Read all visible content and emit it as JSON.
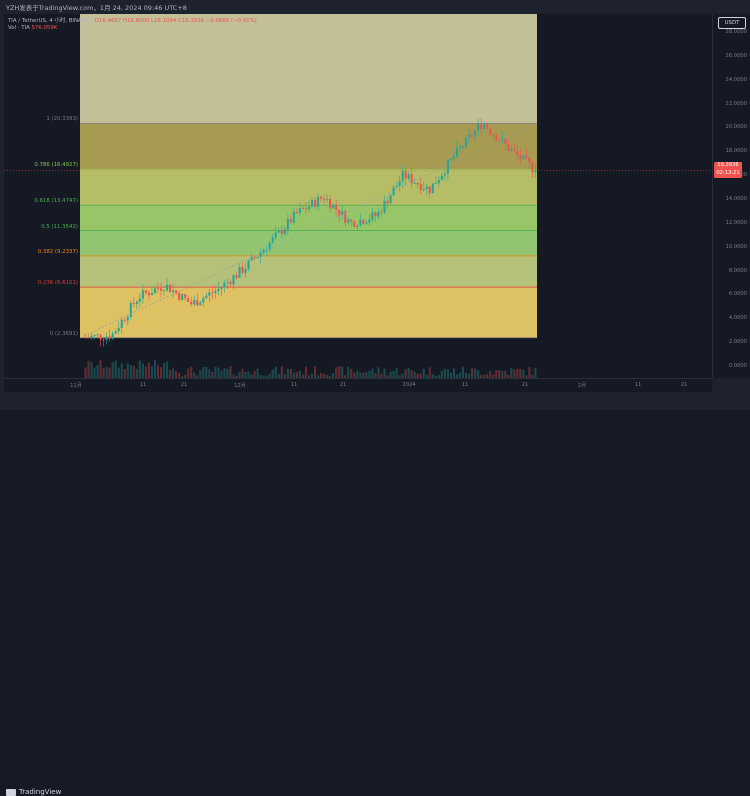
{
  "header": {
    "title": "YZH发表于TradingView.com，1月 24, 2024 09:46 UTC+8"
  },
  "legend": {
    "symbol": "TIA / TetherUS, 4 小时, BINANCE",
    "open": "O16.4667",
    "high": "H16.8000",
    "low": "L16.1094",
    "close": "C16.3936",
    "change": "−0.0680 (−0.41%)",
    "volume_label": "Vol · TIA",
    "volume_value": "576.059K"
  },
  "fib_levels": [
    {
      "label": "1 (20.3393)",
      "value": 20.3393,
      "color": "#787b86",
      "fill": "#b7a957"
    },
    {
      "label": "0.786 (16.4927)",
      "value": 16.4927,
      "color": "#8bc34a",
      "fill": "#c6cf6e"
    },
    {
      "label": "0.618 (13.4747)",
      "value": 13.4747,
      "color": "#4caf50",
      "fill": "#a6d86f"
    },
    {
      "label": "0.5 (11.3542)",
      "value": 11.3542,
      "color": "#4caf50",
      "fill": "#9fd87a"
    },
    {
      "label": "0.382 (9.2337)",
      "value": 9.2337,
      "color": "#f57f17",
      "fill": "#c6d483"
    },
    {
      "label": "0.236 (6.6101)",
      "value": 6.6101,
      "color": "#e53935",
      "fill": "#f3d46a"
    },
    {
      "label": "0 (2.3691)",
      "value": 2.3691,
      "color": "#787b86",
      "fill": "#f5b47a"
    }
  ],
  "fib_top_fill": "#d6d2a3",
  "price_axis": {
    "currency": "USDT",
    "ticks": [
      "28.0000",
      "26.0000",
      "24.0000",
      "22.0000",
      "20.0000",
      "18.0000",
      "16.0000",
      "14.0000",
      "12.0000",
      "10.0000",
      "8.0000",
      "6.0000",
      "4.0000",
      "2.0000",
      "0.0000"
    ],
    "last_price": "16.3936",
    "countdown": "02:13:21"
  },
  "time_axis": {
    "ticks": [
      "11月",
      "11",
      "21",
      "12月",
      "11",
      "21",
      "2024",
      "11",
      "21",
      "2月",
      "11",
      "21"
    ]
  },
  "footer": {
    "brand": "TradingView"
  },
  "colors": {
    "up": "#26a69a",
    "down": "#ef5350",
    "background": "#151924"
  },
  "chart_data": {
    "type": "candlestick",
    "title": "TIA / TetherUS, 4 小时, BINANCE",
    "ylim": [
      0,
      28
    ],
    "x": [
      "11月",
      "11",
      "21",
      "12月",
      "11",
      "21",
      "2024",
      "11",
      "21",
      "2月",
      "11",
      "21"
    ],
    "close_path": [
      {
        "t": "11月",
        "close": 2.4
      },
      {
        "t": "11",
        "close": 2.6
      },
      {
        "t": "11",
        "close": 5.8
      },
      {
        "t": "21",
        "close": 6.8
      },
      {
        "t": "21",
        "close": 5.2
      },
      {
        "t": "12月",
        "close": 6.4
      },
      {
        "t": "12月",
        "close": 8.2
      },
      {
        "t": "11",
        "close": 10.4
      },
      {
        "t": "11",
        "close": 12.8
      },
      {
        "t": "21",
        "close": 14.2
      },
      {
        "t": "21",
        "close": 12.0
      },
      {
        "t": "2024",
        "close": 12.6
      },
      {
        "t": "2024",
        "close": 16.0
      },
      {
        "t": "11",
        "close": 14.8
      },
      {
        "t": "11",
        "close": 17.8
      },
      {
        "t": "21",
        "close": 20.4
      },
      {
        "t": "21",
        "close": 18.2
      },
      {
        "t": "21",
        "close": 16.3936
      }
    ]
  }
}
